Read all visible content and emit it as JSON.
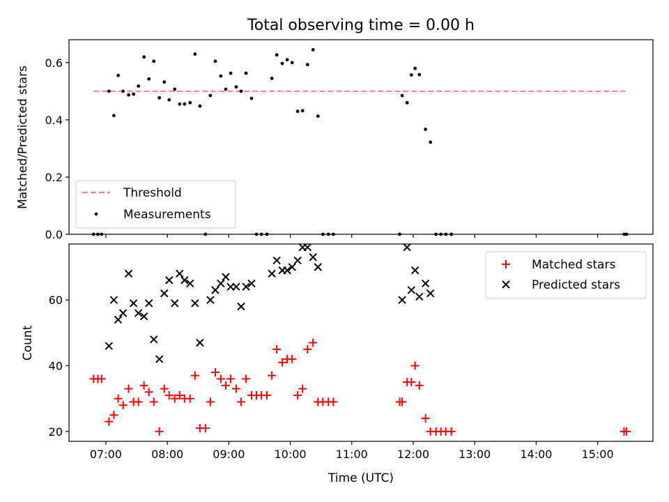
{
  "title": "Total observing time = 0.00 h",
  "colors": {
    "threshold": "#ff7f7f",
    "measurements": "#000000",
    "matched": "#ff0000",
    "predicted": "#000000"
  },
  "chart_data": [
    {
      "type": "scatter",
      "panel": "top",
      "title": "Total observing time = 0.00 h",
      "xlabel": "",
      "ylabel": "Matched/Predicted stars",
      "x_unit": "hours UTC",
      "xlim": [
        6.4,
        15.9
      ],
      "ylim": [
        0,
        0.68
      ],
      "yticks": [
        0.0,
        0.2,
        0.4,
        0.6
      ],
      "ytick_labels": [
        "0.0",
        "0.2",
        "0.4",
        "0.6"
      ],
      "legend_position": "lower-left",
      "threshold": {
        "name": "Threshold",
        "value": 0.5,
        "x_range": [
          6.8,
          15.45
        ]
      },
      "series": [
        {
          "name": "Measurements",
          "x": [
            6.8,
            6.87,
            6.93,
            7.05,
            7.13,
            7.2,
            7.28,
            7.37,
            7.45,
            7.53,
            7.62,
            7.7,
            7.78,
            7.87,
            7.95,
            8.03,
            8.12,
            8.2,
            8.28,
            8.37,
            8.45,
            8.53,
            8.62,
            8.7,
            8.78,
            8.87,
            8.95,
            9.03,
            9.12,
            9.2,
            9.28,
            9.37,
            9.45,
            9.53,
            9.62,
            9.7,
            9.78,
            9.87,
            9.95,
            10.03,
            10.12,
            10.2,
            10.28,
            10.37,
            10.45,
            10.53,
            10.62,
            10.7,
            11.78,
            11.82,
            11.9,
            11.97,
            12.03,
            12.1,
            12.2,
            12.28,
            12.37,
            12.45,
            12.53,
            12.62,
            15.43,
            15.47
          ],
          "y": [
            0.0,
            0.0,
            0.0,
            0.5,
            0.415,
            0.555,
            0.5,
            0.487,
            0.49,
            0.518,
            0.62,
            0.543,
            0.605,
            0.477,
            0.532,
            0.47,
            0.507,
            0.455,
            0.455,
            0.46,
            0.63,
            0.448,
            0.0,
            0.485,
            0.605,
            0.553,
            0.507,
            0.563,
            0.515,
            0.5,
            0.563,
            0.475,
            0.0,
            0.0,
            0.0,
            0.545,
            0.627,
            0.597,
            0.61,
            0.6,
            0.43,
            0.432,
            0.593,
            0.645,
            0.413,
            0.0,
            0.0,
            0.0,
            0.0,
            0.485,
            0.46,
            0.557,
            0.58,
            0.558,
            0.367,
            0.322,
            0.0,
            0.0,
            0.0,
            0.0,
            0.0,
            0.0
          ]
        }
      ]
    },
    {
      "type": "scatter",
      "panel": "bottom",
      "xlabel": "Time (UTC)",
      "ylabel": "Count",
      "x_unit": "hours UTC",
      "xlim": [
        6.4,
        15.9
      ],
      "ylim": [
        17,
        77
      ],
      "xticks": [
        7,
        8,
        9,
        10,
        11,
        12,
        13,
        14,
        15
      ],
      "xtick_labels": [
        "07:00",
        "08:00",
        "09:00",
        "10:00",
        "11:00",
        "12:00",
        "13:00",
        "14:00",
        "15:00"
      ],
      "yticks": [
        20,
        40,
        60
      ],
      "ytick_labels": [
        "20",
        "40",
        "60"
      ],
      "legend_position": "top-right",
      "series": [
        {
          "name": "Matched stars",
          "marker": "plus",
          "x": [
            6.8,
            6.87,
            6.93,
            7.05,
            7.13,
            7.2,
            7.28,
            7.37,
            7.45,
            7.53,
            7.62,
            7.7,
            7.78,
            7.87,
            7.95,
            8.03,
            8.12,
            8.2,
            8.28,
            8.37,
            8.45,
            8.53,
            8.62,
            8.7,
            8.78,
            8.87,
            8.95,
            9.03,
            9.12,
            9.2,
            9.28,
            9.37,
            9.45,
            9.53,
            9.62,
            9.7,
            9.78,
            9.87,
            9.95,
            10.03,
            10.12,
            10.2,
            10.28,
            10.37,
            10.45,
            10.53,
            10.62,
            10.7,
            11.78,
            11.82,
            11.9,
            11.97,
            12.03,
            12.1,
            12.2,
            12.28,
            12.37,
            12.45,
            12.53,
            12.62,
            15.43,
            15.47
          ],
          "y": [
            36,
            36,
            36,
            23,
            25,
            30,
            28,
            33,
            29,
            29,
            34,
            32,
            29,
            20,
            33,
            31,
            30,
            31,
            30,
            30,
            37,
            21,
            21,
            29,
            38,
            36,
            34,
            36,
            33,
            29,
            36,
            31,
            31,
            31,
            31,
            37,
            45,
            41,
            42,
            42,
            31,
            33,
            45,
            47,
            29,
            29,
            29,
            29,
            29,
            29,
            35,
            35,
            40,
            34,
            24,
            20,
            20,
            20,
            20,
            20,
            20,
            20
          ]
        },
        {
          "name": "Predicted stars",
          "marker": "x",
          "x": [
            7.05,
            7.13,
            7.2,
            7.28,
            7.37,
            7.45,
            7.53,
            7.62,
            7.7,
            7.78,
            7.87,
            7.95,
            8.03,
            8.12,
            8.2,
            8.28,
            8.37,
            8.45,
            8.53,
            8.7,
            8.78,
            8.87,
            8.95,
            9.03,
            9.12,
            9.2,
            9.28,
            9.37,
            9.7,
            9.78,
            9.87,
            9.95,
            10.03,
            10.12,
            10.2,
            10.28,
            10.37,
            10.45,
            11.82,
            11.9,
            11.97,
            12.03,
            12.1,
            12.2,
            12.28
          ],
          "y": [
            46,
            60,
            54,
            56,
            68,
            59,
            56,
            55,
            59,
            48,
            42,
            62,
            66,
            59,
            68,
            66,
            65,
            59,
            47,
            60,
            63,
            65,
            67,
            64,
            64,
            58,
            64,
            65,
            68,
            72,
            69,
            69,
            70,
            72,
            76,
            76,
            73,
            70,
            60,
            76,
            63,
            69,
            61,
            65,
            62
          ]
        }
      ]
    }
  ]
}
